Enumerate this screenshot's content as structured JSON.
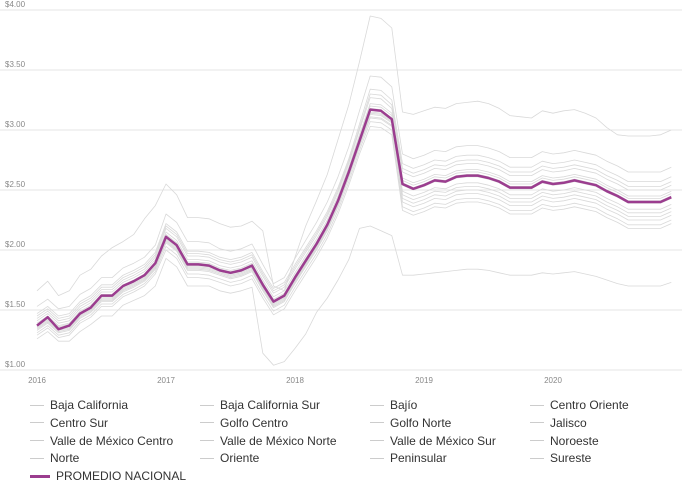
{
  "chart_data": {
    "type": "line",
    "title": "",
    "xlabel": "",
    "ylabel": "",
    "ylim": [
      1.0,
      4.0
    ],
    "y_ticks": [
      "$1.00",
      "$1.50",
      "$2.00",
      "$2.50",
      "$3.00",
      "$3.50",
      "$4.00"
    ],
    "y_tick_values": [
      1.0,
      1.5,
      2.0,
      2.5,
      3.0,
      3.5,
      4.0
    ],
    "x_ticks": [
      "2016",
      "2017",
      "2018",
      "2019",
      "2020"
    ],
    "x_tick_values": [
      2016,
      2017,
      2018,
      2019,
      2020
    ],
    "xlim": [
      2016.0,
      2021.0
    ],
    "grid": true,
    "legend_position": "bottom",
    "x": [
      2016.0,
      2016.083,
      2016.167,
      2016.25,
      2016.333,
      2016.417,
      2016.5,
      2016.583,
      2016.667,
      2016.75,
      2016.833,
      2016.917,
      2017.0,
      2017.083,
      2017.167,
      2017.25,
      2017.333,
      2017.417,
      2017.5,
      2017.583,
      2017.667,
      2017.75,
      2017.833,
      2017.917,
      2018.0,
      2018.083,
      2018.167,
      2018.25,
      2018.333,
      2018.417,
      2018.5,
      2018.583,
      2018.667,
      2018.75,
      2018.833,
      2018.917,
      2019.0,
      2019.083,
      2019.167,
      2019.25,
      2019.333,
      2019.417,
      2019.5,
      2019.583,
      2019.667,
      2019.75,
      2019.833,
      2019.917,
      2020.0,
      2020.083,
      2020.167,
      2020.25,
      2020.333,
      2020.417,
      2020.5,
      2020.583,
      2020.667,
      2020.75,
      2020.833,
      2020.917
    ],
    "series": [
      {
        "name": "Baja California",
        "values": [
          1.38,
          1.44,
          1.36,
          1.38,
          1.48,
          1.53,
          1.62,
          1.62,
          1.7,
          1.74,
          1.79,
          1.89,
          2.12,
          2.05,
          1.89,
          1.89,
          1.88,
          1.84,
          1.82,
          1.84,
          1.88,
          1.72,
          1.58,
          1.63,
          1.78,
          1.92,
          2.06,
          2.22,
          2.42,
          2.66,
          2.92,
          3.18,
          3.17,
          3.1,
          2.56,
          2.52,
          2.55,
          2.59,
          2.58,
          2.62,
          2.63,
          2.63,
          2.61,
          2.58,
          2.53,
          2.53,
          2.53,
          2.58,
          2.56,
          2.57,
          2.59,
          2.57,
          2.55,
          2.5,
          2.46,
          2.41,
          2.41,
          2.41,
          2.41,
          2.45
        ]
      },
      {
        "name": "Baja California Sur",
        "values": [
          1.37,
          1.43,
          1.35,
          1.37,
          1.47,
          1.52,
          1.61,
          1.61,
          1.69,
          1.73,
          1.78,
          1.88,
          2.1,
          2.03,
          1.87,
          1.87,
          1.86,
          1.83,
          1.8,
          1.82,
          1.86,
          1.7,
          1.56,
          1.61,
          1.76,
          1.9,
          2.04,
          2.2,
          2.4,
          2.64,
          2.9,
          3.15,
          3.14,
          3.08,
          2.54,
          2.5,
          2.53,
          2.57,
          2.56,
          2.6,
          2.61,
          2.61,
          2.59,
          2.56,
          2.51,
          2.51,
          2.51,
          2.56,
          2.54,
          2.55,
          2.57,
          2.55,
          2.53,
          2.48,
          2.44,
          2.39,
          2.39,
          2.39,
          2.39,
          2.43
        ]
      },
      {
        "name": "Bajío",
        "values": [
          1.33,
          1.39,
          1.31,
          1.33,
          1.43,
          1.48,
          1.57,
          1.57,
          1.65,
          1.69,
          1.74,
          1.84,
          2.06,
          1.99,
          1.83,
          1.83,
          1.82,
          1.79,
          1.76,
          1.78,
          1.82,
          1.66,
          1.52,
          1.57,
          1.72,
          1.86,
          2.0,
          2.16,
          2.36,
          2.6,
          2.86,
          3.1,
          3.09,
          3.03,
          2.49,
          2.45,
          2.48,
          2.52,
          2.51,
          2.55,
          2.56,
          2.56,
          2.54,
          2.51,
          2.46,
          2.46,
          2.46,
          2.51,
          2.49,
          2.5,
          2.52,
          2.5,
          2.48,
          2.43,
          2.39,
          2.34,
          2.34,
          2.34,
          2.34,
          2.38
        ]
      },
      {
        "name": "Centro Oriente",
        "values": [
          1.41,
          1.47,
          1.39,
          1.41,
          1.51,
          1.56,
          1.65,
          1.65,
          1.73,
          1.77,
          1.82,
          1.92,
          2.15,
          2.08,
          1.92,
          1.92,
          1.91,
          1.87,
          1.85,
          1.87,
          1.91,
          1.75,
          1.61,
          1.66,
          1.81,
          1.95,
          2.09,
          2.25,
          2.45,
          2.69,
          2.96,
          3.22,
          3.21,
          3.14,
          2.6,
          2.56,
          2.59,
          2.63,
          2.62,
          2.66,
          2.67,
          2.67,
          2.65,
          2.62,
          2.57,
          2.57,
          2.57,
          2.62,
          2.6,
          2.61,
          2.63,
          2.61,
          2.59,
          2.54,
          2.5,
          2.45,
          2.45,
          2.45,
          2.45,
          2.49
        ]
      },
      {
        "name": "Centro Sur",
        "values": [
          1.35,
          1.41,
          1.33,
          1.35,
          1.45,
          1.5,
          1.59,
          1.59,
          1.67,
          1.71,
          1.76,
          1.86,
          2.08,
          2.01,
          1.85,
          1.85,
          1.84,
          1.81,
          1.78,
          1.8,
          1.84,
          1.68,
          1.54,
          1.59,
          1.74,
          1.88,
          2.02,
          2.18,
          2.38,
          2.62,
          2.88,
          3.13,
          3.12,
          3.06,
          2.4,
          2.36,
          2.39,
          2.43,
          2.42,
          2.46,
          2.47,
          2.47,
          2.45,
          2.42,
          2.37,
          2.37,
          2.37,
          2.42,
          2.4,
          2.41,
          2.43,
          2.41,
          2.39,
          2.34,
          2.3,
          2.25,
          2.25,
          2.25,
          2.25,
          2.29
        ]
      },
      {
        "name": "Golfo Centro",
        "values": [
          1.31,
          1.37,
          1.29,
          1.31,
          1.41,
          1.46,
          1.55,
          1.55,
          1.63,
          1.67,
          1.72,
          1.82,
          2.03,
          1.96,
          1.8,
          1.8,
          1.79,
          1.76,
          1.73,
          1.75,
          1.79,
          1.63,
          1.49,
          1.54,
          1.69,
          1.83,
          1.97,
          2.13,
          2.33,
          2.57,
          2.83,
          3.07,
          3.06,
          3.0,
          2.36,
          2.32,
          2.35,
          2.39,
          2.38,
          2.42,
          2.43,
          2.43,
          2.41,
          2.38,
          2.33,
          2.33,
          2.33,
          2.38,
          2.36,
          2.37,
          2.39,
          2.37,
          2.35,
          2.3,
          2.26,
          2.21,
          2.21,
          2.21,
          2.21,
          2.25
        ]
      },
      {
        "name": "Golfo Norte",
        "values": [
          1.36,
          1.42,
          1.34,
          1.36,
          1.46,
          1.51,
          1.6,
          1.6,
          1.68,
          1.72,
          1.77,
          1.87,
          2.09,
          2.02,
          1.86,
          1.86,
          1.85,
          1.82,
          1.79,
          1.81,
          1.85,
          1.69,
          1.55,
          1.6,
          1.75,
          1.89,
          2.03,
          2.19,
          2.39,
          2.63,
          2.89,
          3.14,
          3.13,
          3.07,
          2.43,
          2.39,
          2.42,
          2.46,
          2.45,
          2.49,
          2.5,
          2.5,
          2.48,
          2.45,
          2.4,
          2.4,
          2.4,
          2.45,
          2.43,
          2.44,
          2.46,
          2.44,
          2.42,
          2.37,
          2.33,
          2.28,
          2.28,
          2.28,
          2.28,
          2.32
        ]
      },
      {
        "name": "Jalisco",
        "values": [
          1.39,
          1.45,
          1.37,
          1.39,
          1.49,
          1.54,
          1.63,
          1.63,
          1.71,
          1.75,
          1.8,
          1.9,
          2.13,
          2.06,
          1.9,
          1.9,
          1.89,
          1.85,
          1.83,
          1.85,
          1.89,
          1.73,
          1.59,
          1.64,
          1.79,
          1.93,
          2.07,
          2.23,
          2.43,
          2.67,
          2.94,
          3.2,
          3.19,
          3.12,
          2.58,
          2.54,
          2.57,
          2.61,
          2.6,
          2.64,
          2.65,
          2.65,
          2.63,
          2.6,
          2.55,
          2.55,
          2.55,
          2.6,
          2.58,
          2.59,
          2.61,
          2.59,
          2.57,
          2.52,
          2.48,
          2.43,
          2.43,
          2.43,
          2.43,
          2.47
        ]
      },
      {
        "name": "Valle de México Centro",
        "values": [
          1.45,
          1.51,
          1.43,
          1.45,
          1.55,
          1.6,
          1.69,
          1.69,
          1.77,
          1.81,
          1.86,
          1.96,
          2.2,
          2.13,
          1.97,
          1.97,
          1.96,
          1.92,
          1.9,
          1.92,
          1.96,
          1.8,
          1.66,
          1.71,
          1.86,
          2.0,
          2.14,
          2.3,
          2.5,
          2.74,
          3.02,
          3.3,
          3.29,
          3.21,
          2.68,
          2.64,
          2.67,
          2.71,
          2.7,
          2.74,
          2.75,
          2.75,
          2.73,
          2.7,
          2.65,
          2.65,
          2.65,
          2.7,
          2.68,
          2.69,
          2.71,
          2.69,
          2.67,
          2.62,
          2.58,
          2.53,
          2.53,
          2.53,
          2.53,
          2.57
        ]
      },
      {
        "name": "Valle de México Norte",
        "values": [
          1.43,
          1.49,
          1.41,
          1.43,
          1.53,
          1.58,
          1.67,
          1.67,
          1.75,
          1.79,
          1.84,
          1.94,
          2.18,
          2.11,
          1.95,
          1.95,
          1.94,
          1.9,
          1.88,
          1.9,
          1.94,
          1.78,
          1.64,
          1.69,
          1.84,
          1.98,
          2.12,
          2.28,
          2.48,
          2.72,
          3.0,
          3.27,
          3.26,
          3.18,
          2.65,
          2.61,
          2.64,
          2.68,
          2.67,
          2.71,
          2.72,
          2.72,
          2.7,
          2.67,
          2.62,
          2.62,
          2.62,
          2.67,
          2.65,
          2.66,
          2.68,
          2.66,
          2.64,
          2.59,
          2.55,
          2.5,
          2.5,
          2.5,
          2.5,
          2.54
        ]
      },
      {
        "name": "Valle de México Sur",
        "values": [
          1.47,
          1.53,
          1.45,
          1.47,
          1.57,
          1.62,
          1.71,
          1.71,
          1.79,
          1.83,
          1.88,
          1.98,
          2.22,
          2.15,
          1.99,
          1.99,
          1.98,
          1.94,
          1.92,
          1.94,
          1.98,
          1.82,
          1.68,
          1.73,
          1.88,
          2.02,
          2.16,
          2.32,
          2.52,
          2.76,
          3.05,
          3.34,
          3.33,
          3.25,
          2.72,
          2.68,
          2.71,
          2.75,
          2.74,
          2.78,
          2.79,
          2.79,
          2.77,
          2.74,
          2.69,
          2.69,
          2.69,
          2.74,
          2.72,
          2.73,
          2.75,
          2.73,
          2.71,
          2.66,
          2.62,
          2.57,
          2.57,
          2.57,
          2.57,
          2.61
        ]
      },
      {
        "name": "Noroeste",
        "values": [
          1.53,
          1.59,
          1.51,
          1.53,
          1.63,
          1.68,
          1.77,
          1.77,
          1.85,
          1.89,
          1.94,
          2.04,
          2.3,
          2.23,
          2.07,
          2.07,
          2.06,
          2.01,
          1.99,
          2.01,
          2.05,
          1.88,
          1.72,
          1.77,
          1.93,
          2.08,
          2.23,
          2.4,
          2.61,
          2.86,
          3.16,
          3.45,
          3.44,
          3.36,
          2.8,
          2.76,
          2.79,
          2.83,
          2.82,
          2.86,
          2.87,
          2.87,
          2.85,
          2.82,
          2.77,
          2.77,
          2.77,
          2.82,
          2.8,
          2.81,
          2.83,
          2.81,
          2.79,
          2.74,
          2.7,
          2.65,
          2.65,
          2.65,
          2.65,
          2.69
        ]
      },
      {
        "name": "Norte",
        "values": [
          1.29,
          1.35,
          1.27,
          1.29,
          1.39,
          1.44,
          1.53,
          1.53,
          1.61,
          1.65,
          1.7,
          1.8,
          2.0,
          1.93,
          1.77,
          1.77,
          1.76,
          1.73,
          1.7,
          1.72,
          1.76,
          1.6,
          1.46,
          1.51,
          1.66,
          1.8,
          1.94,
          2.1,
          2.3,
          2.54,
          2.8,
          3.03,
          3.02,
          2.96,
          2.33,
          2.29,
          2.32,
          2.36,
          2.35,
          2.39,
          2.4,
          2.4,
          2.38,
          2.35,
          2.3,
          2.3,
          2.3,
          2.35,
          2.33,
          2.34,
          2.36,
          2.34,
          2.32,
          2.27,
          2.23,
          2.18,
          2.18,
          2.18,
          2.18,
          2.22
        ]
      },
      {
        "name": "Oriente",
        "values": [
          1.34,
          1.4,
          1.32,
          1.34,
          1.44,
          1.49,
          1.58,
          1.58,
          1.66,
          1.7,
          1.75,
          1.85,
          2.07,
          2.0,
          1.84,
          1.84,
          1.83,
          1.8,
          1.77,
          1.79,
          1.83,
          1.67,
          1.53,
          1.58,
          1.73,
          1.87,
          2.01,
          2.17,
          2.37,
          2.61,
          2.87,
          3.11,
          3.1,
          3.04,
          2.46,
          2.42,
          2.45,
          2.49,
          2.48,
          2.52,
          2.53,
          2.53,
          2.51,
          2.48,
          2.43,
          2.43,
          2.43,
          2.48,
          2.46,
          2.47,
          2.49,
          2.47,
          2.45,
          2.4,
          2.36,
          2.31,
          2.31,
          2.31,
          2.31,
          2.35
        ]
      },
      {
        "name": "Peninsular",
        "values": [
          1.66,
          1.74,
          1.62,
          1.66,
          1.79,
          1.84,
          1.95,
          2.02,
          2.07,
          2.13,
          2.26,
          2.37,
          2.55,
          2.46,
          2.27,
          2.27,
          2.26,
          2.22,
          2.19,
          2.2,
          2.24,
          2.16,
          1.7,
          1.66,
          1.94,
          2.2,
          2.41,
          2.63,
          2.92,
          3.21,
          3.57,
          3.95,
          3.93,
          3.85,
          3.15,
          3.13,
          3.16,
          3.19,
          3.18,
          3.22,
          3.23,
          3.24,
          3.22,
          3.18,
          3.12,
          3.11,
          3.1,
          3.16,
          3.14,
          3.16,
          3.17,
          3.14,
          3.1,
          3.02,
          2.96,
          2.95,
          2.95,
          2.95,
          2.96,
          3.0
        ]
      },
      {
        "name": "Sureste",
        "values": [
          1.26,
          1.32,
          1.24,
          1.24,
          1.32,
          1.38,
          1.45,
          1.45,
          1.54,
          1.58,
          1.62,
          1.7,
          1.93,
          1.86,
          1.7,
          1.7,
          1.7,
          1.66,
          1.64,
          1.66,
          1.69,
          1.14,
          1.04,
          1.07,
          1.18,
          1.3,
          1.48,
          1.6,
          1.75,
          1.92,
          2.18,
          2.2,
          2.16,
          2.12,
          1.79,
          1.79,
          1.8,
          1.81,
          1.82,
          1.83,
          1.84,
          1.84,
          1.83,
          1.81,
          1.79,
          1.79,
          1.79,
          1.81,
          1.8,
          1.81,
          1.82,
          1.8,
          1.78,
          1.75,
          1.72,
          1.7,
          1.7,
          1.7,
          1.7,
          1.73
        ]
      },
      {
        "name": "PROMEDIO NACIONAL",
        "values": [
          1.37,
          1.44,
          1.34,
          1.37,
          1.47,
          1.52,
          1.62,
          1.62,
          1.7,
          1.74,
          1.79,
          1.89,
          2.11,
          2.04,
          1.88,
          1.88,
          1.87,
          1.83,
          1.81,
          1.83,
          1.87,
          1.71,
          1.57,
          1.62,
          1.77,
          1.91,
          2.05,
          2.21,
          2.41,
          2.65,
          2.91,
          3.17,
          3.16,
          3.09,
          2.55,
          2.51,
          2.54,
          2.58,
          2.57,
          2.61,
          2.62,
          2.62,
          2.6,
          2.57,
          2.52,
          2.52,
          2.52,
          2.57,
          2.55,
          2.56,
          2.58,
          2.56,
          2.54,
          2.49,
          2.45,
          2.4,
          2.4,
          2.4,
          2.4,
          2.44
        ],
        "highlight": true
      }
    ]
  },
  "colors": {
    "average": "#9b3d8f",
    "region_line": "#d9d9d9",
    "grid": "#e6e6e6",
    "tick_text": "#888888"
  }
}
